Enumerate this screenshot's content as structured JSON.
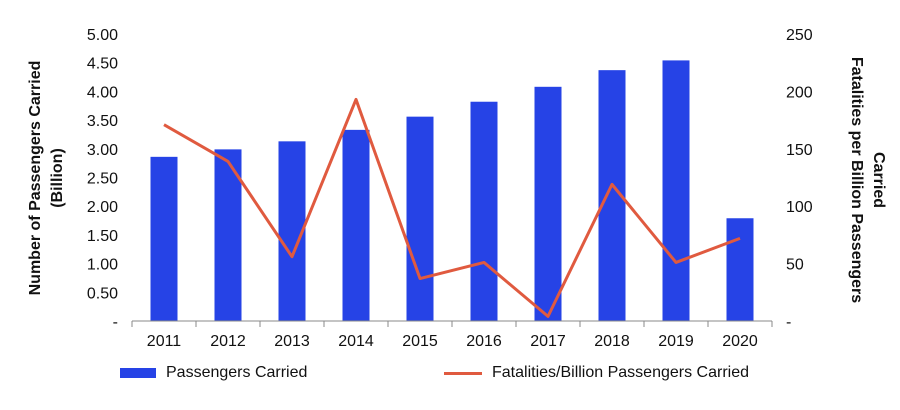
{
  "chart_data": {
    "type": "bar",
    "categories": [
      "2011",
      "2012",
      "2013",
      "2014",
      "2015",
      "2016",
      "2017",
      "2018",
      "2019",
      "2020"
    ],
    "series": [
      {
        "name": "Passengers Carried",
        "type": "bar",
        "axis": "left",
        "color": "#2643e6",
        "values": [
          2.86,
          2.99,
          3.13,
          3.33,
          3.56,
          3.82,
          4.08,
          4.37,
          4.54,
          1.79
        ]
      },
      {
        "name": "Fatalities/Billion Passengers Carried",
        "type": "line",
        "axis": "right",
        "color": "#e05a3f",
        "values": [
          171,
          139,
          56,
          193,
          37,
          51,
          4,
          119,
          51,
          72
        ]
      }
    ],
    "y_left": {
      "label_line1": "Number of Passengers Carried",
      "label_line2": "(Billion)",
      "ylim": [
        0,
        5
      ],
      "tick_labels": [
        "-",
        "0.50",
        "1.00",
        "1.50",
        "2.00",
        "2.50",
        "3.00",
        "3.50",
        "4.00",
        "4.50",
        "5.00"
      ]
    },
    "y_right": {
      "label_line1": "Fatalities per Billion Passengers",
      "label_line2": "Carried",
      "ylim": [
        0,
        250
      ],
      "tick_labels": [
        "-",
        "50",
        "100",
        "150",
        "200",
        "250"
      ]
    },
    "grid": false,
    "legend_position": "bottom"
  }
}
